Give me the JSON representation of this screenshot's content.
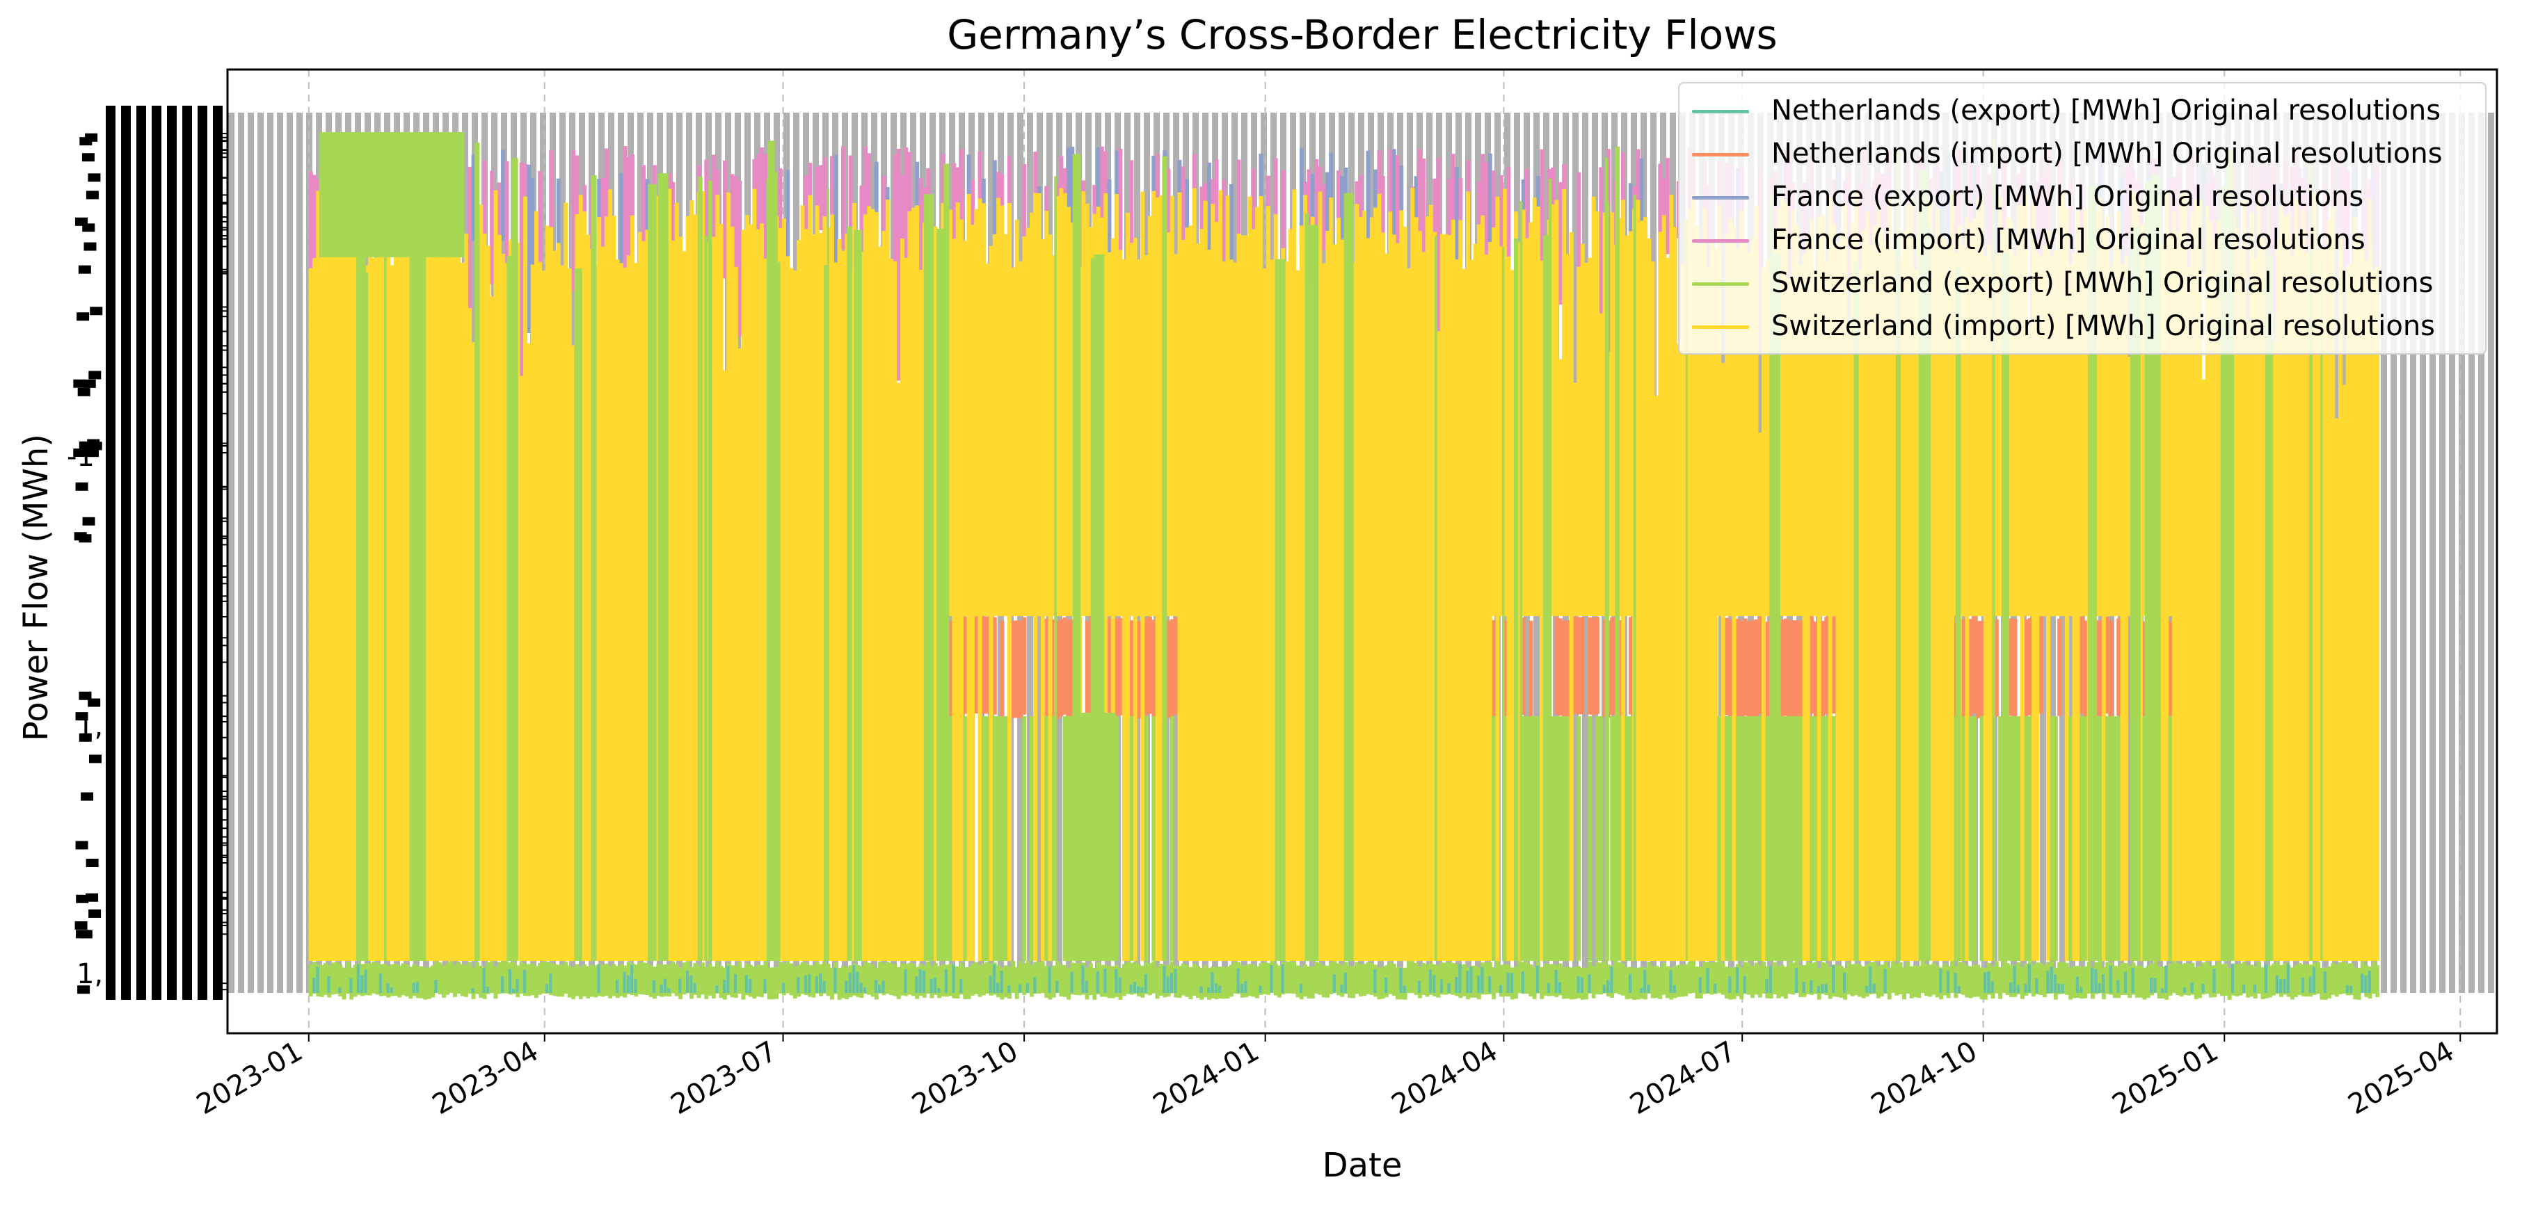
{
  "chart_data": {
    "type": "line",
    "title": "Germany’s Cross-Border Electricity Flows",
    "xlabel": "Date",
    "ylabel": "Power Flow (MWh)",
    "x_ticks": [
      "2023-01",
      "2023-04",
      "2023-07",
      "2023-10",
      "2024-01",
      "2024-04",
      "2024-07",
      "2024-10",
      "2025-01",
      "2025-04"
    ],
    "x_range": [
      "2022-12-01",
      "2025-04-15"
    ],
    "data_range": [
      "2023-01-01",
      "2025-03-01"
    ],
    "y_tick_labels_legible": [
      "-1",
      "1,",
      "1,"
    ],
    "grid": "x-dashed",
    "legend_position": "top-right",
    "series": [
      {
        "name": "Netherlands (export) [MWh] Original resolutions",
        "color": "#66c2a5",
        "band": "bottom"
      },
      {
        "name": "Netherlands (import) [MWh] Original resolutions",
        "color": "#fc8d62",
        "band": "mid"
      },
      {
        "name": "France (export) [MWh] Original resolutions",
        "color": "#8da0cb",
        "band": "top"
      },
      {
        "name": "France (import) [MWh] Original resolutions",
        "color": "#e78ac3",
        "band": "top"
      },
      {
        "name": "Switzerland (export) [MWh] Original resolutions",
        "color": "#a6d854",
        "band": "full"
      },
      {
        "name": "Switzerland (import) [MWh] Original resolutions",
        "color": "#ffd92f",
        "band": "full"
      }
    ]
  }
}
